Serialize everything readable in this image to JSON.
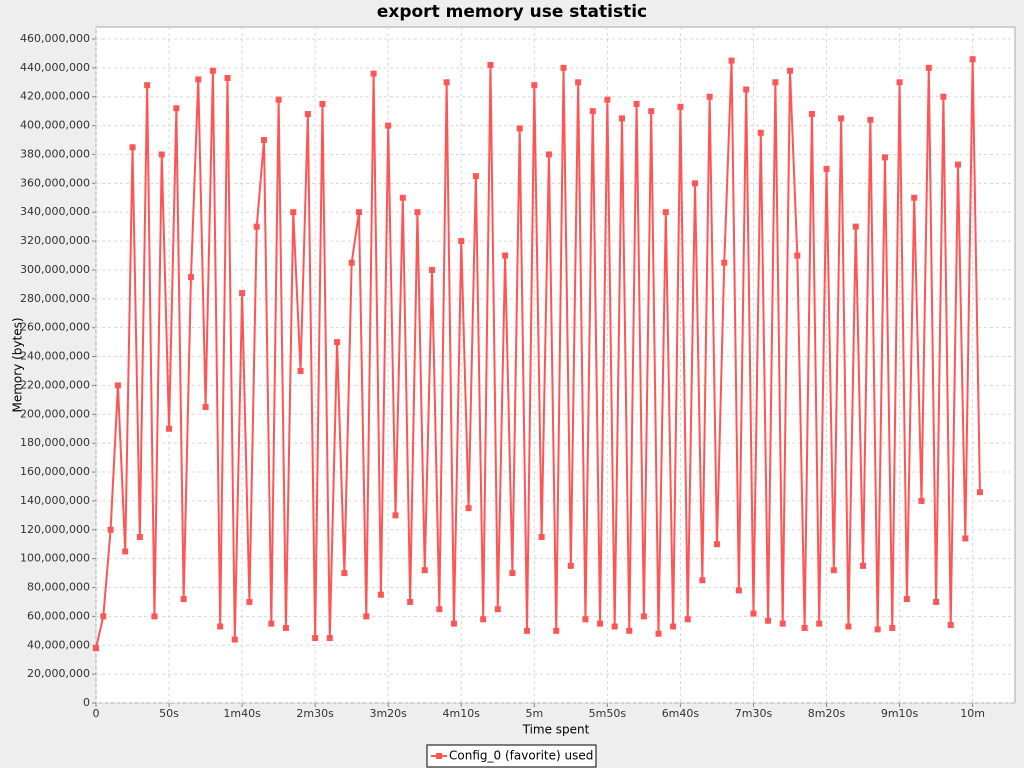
{
  "chart_data": {
    "type": "line",
    "title": "export memory use statistic",
    "x_label": "Time spent",
    "y_label": "Memory (bytes)",
    "x": [
      0,
      5,
      10,
      15,
      20,
      25,
      30,
      35,
      40,
      45,
      50,
      55,
      60,
      65,
      70,
      75,
      80,
      85,
      90,
      95,
      100,
      105,
      110,
      115,
      120,
      125,
      130,
      135,
      140,
      145,
      150,
      155,
      160,
      165,
      170,
      175,
      180,
      185,
      190,
      195,
      200,
      205,
      210,
      215,
      220,
      225,
      230,
      235,
      240,
      245,
      250,
      255,
      260,
      265,
      270,
      275,
      280,
      285,
      290,
      295,
      300,
      305,
      310,
      315,
      320,
      325,
      330,
      335,
      340,
      345,
      350,
      355,
      360,
      365,
      370,
      375,
      380,
      385,
      390,
      395,
      400,
      405,
      410,
      415,
      420,
      425,
      430,
      435,
      440,
      445,
      450,
      455,
      460,
      465,
      470,
      475,
      480,
      485,
      490,
      495,
      500,
      505,
      510,
      515,
      520,
      525,
      530,
      535,
      540,
      545,
      550,
      555,
      560,
      565,
      570,
      575,
      580,
      585,
      590,
      595,
      600,
      605
    ],
    "series": [
      {
        "name": "Config_0 (favorite) used",
        "color": "#ff5555",
        "values": [
          38000000,
          60000000,
          120000000,
          220000000,
          105000000,
          385000000,
          115000000,
          428000000,
          60000000,
          380000000,
          190000000,
          412000000,
          72000000,
          295000000,
          432000000,
          205000000,
          438000000,
          53000000,
          433000000,
          44000000,
          284000000,
          70000000,
          330000000,
          390000000,
          55000000,
          418000000,
          52000000,
          340000000,
          230000000,
          408000000,
          45000000,
          415000000,
          45000000,
          250000000,
          90000000,
          305000000,
          340000000,
          60000000,
          436000000,
          75000000,
          400000000,
          130000000,
          350000000,
          70000000,
          340000000,
          92000000,
          300000000,
          65000000,
          430000000,
          55000000,
          320000000,
          135000000,
          365000000,
          58000000,
          442000000,
          65000000,
          310000000,
          90000000,
          398000000,
          50000000,
          428000000,
          115000000,
          380000000,
          50000000,
          440000000,
          95000000,
          430000000,
          58000000,
          410000000,
          55000000,
          418000000,
          53000000,
          405000000,
          50000000,
          415000000,
          60000000,
          410000000,
          48000000,
          340000000,
          53000000,
          413000000,
          58000000,
          360000000,
          85000000,
          420000000,
          110000000,
          305000000,
          445000000,
          78000000,
          425000000,
          62000000,
          395000000,
          57000000,
          430000000,
          55000000,
          438000000,
          310000000,
          52000000,
          408000000,
          55000000,
          370000000,
          92000000,
          405000000,
          53000000,
          330000000,
          95000000,
          404000000,
          51000000,
          378000000,
          52000000,
          430000000,
          72000000,
          350000000,
          140000000,
          440000000,
          70000000,
          420000000,
          54000000,
          373000000,
          114000000,
          446000000,
          146000000
        ]
      }
    ],
    "xlim": [
      0,
      629
    ],
    "ylim": [
      0,
      468300000
    ],
    "xticks": [
      0,
      {
        "value": 50,
        "label": "50s"
      },
      {
        "value": 100,
        "label": "1m40s"
      },
      {
        "value": 150,
        "label": "2m30s"
      },
      {
        "value": 200,
        "label": "3m20s"
      },
      {
        "value": 250,
        "label": "4m10s"
      },
      {
        "value": 300,
        "label": "5m"
      },
      {
        "value": 350,
        "label": "5m50s"
      },
      {
        "value": 400,
        "label": "6m40s"
      },
      {
        "value": 450,
        "label": "7m30s"
      },
      {
        "value": 500,
        "label": "8m20s"
      },
      {
        "value": 550,
        "label": "9m10s"
      },
      {
        "value": 600,
        "label": "10m"
      }
    ],
    "yticks": [
      0,
      {
        "value": 20000000,
        "label": "20,000,000"
      },
      {
        "value": 40000000,
        "label": "40,000,000"
      },
      {
        "value": 60000000,
        "label": "60,000,000"
      },
      {
        "value": 80000000,
        "label": "80,000,000"
      },
      {
        "value": 100000000,
        "label": "100,000,000"
      },
      {
        "value": 120000000,
        "label": "120,000,000"
      },
      {
        "value": 140000000,
        "label": "140,000,000"
      },
      {
        "value": 160000000,
        "label": "160,000,000"
      },
      {
        "value": 180000000,
        "label": "180,000,000"
      },
      {
        "value": 200000000,
        "label": "200,000,000"
      },
      {
        "value": 220000000,
        "label": "220,000,000"
      },
      {
        "value": 240000000,
        "label": "240,000,000"
      },
      {
        "value": 260000000,
        "label": "260,000,000"
      },
      {
        "value": 280000000,
        "label": "280,000,000"
      },
      {
        "value": 300000000,
        "label": "300,000,000"
      },
      {
        "value": 320000000,
        "label": "320,000,000"
      },
      {
        "value": 340000000,
        "label": "340,000,000"
      },
      {
        "value": 360000000,
        "label": "360,000,000"
      },
      {
        "value": 380000000,
        "label": "380,000,000"
      },
      {
        "value": 400000000,
        "label": "400,000,000"
      },
      {
        "value": 420000000,
        "label": "420,000,000"
      },
      {
        "value": 440000000,
        "label": "440,000,000"
      },
      {
        "value": 460000000,
        "label": "460,000,000"
      }
    ],
    "grid": true,
    "legend": "bottom"
  }
}
